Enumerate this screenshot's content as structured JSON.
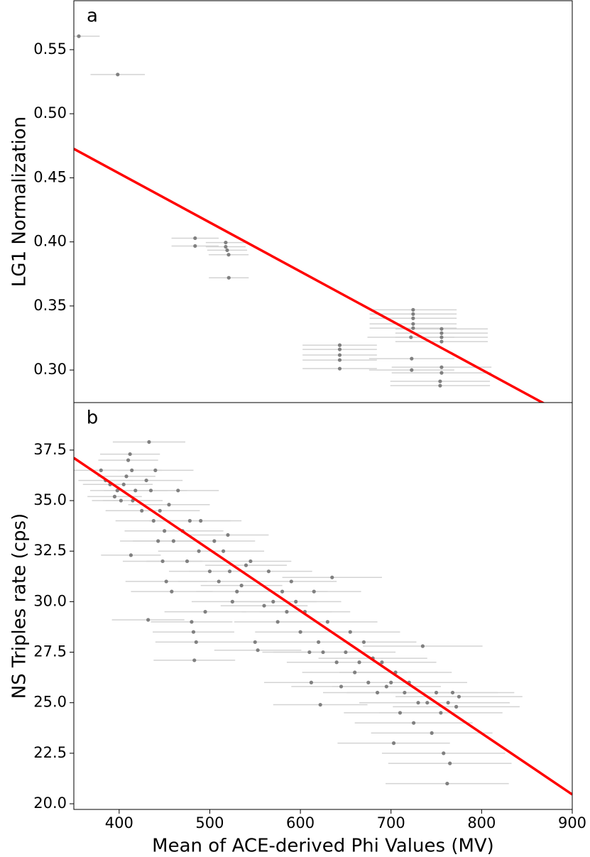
{
  "chart_data": [
    {
      "type": "scatter",
      "label": "a",
      "ylabel": "LG1 Normalization",
      "xlim": [
        350,
        900
      ],
      "ylim": [
        0.2746,
        0.5882
      ],
      "yticks": [
        {
          "value": 0.3,
          "label": "0.30"
        },
        0.35,
        {
          "value": 0.4,
          "label": "0.40"
        },
        0.45,
        {
          "value": 0.5,
          "label": "0.50"
        },
        0.55
      ],
      "series": [
        {
          "color": "#808080",
          "errorbar_color": "#d3d3d3",
          "x": [
            355.5,
            398.4,
            483.8,
            483.8,
            517.6,
            517.6,
            519.2,
            520.8,
            521,
            643.4,
            643.4,
            643.4,
            643.4,
            643.4,
            724.4,
            724.4,
            724.4,
            724.4,
            724.4,
            722,
            722.8,
            722.8,
            755.8,
            755.8,
            755.8,
            755.8,
            755.8,
            755.8,
            754.2,
            754.2
          ],
          "y": [
            0.5605,
            0.5306,
            0.4029,
            0.3968,
            0.3995,
            0.3962,
            0.3935,
            0.39,
            0.372,
            0.3194,
            0.3161,
            0.3117,
            0.3078,
            0.3011,
            0.347,
            0.3437,
            0.3404,
            0.336,
            0.3327,
            0.3256,
            0.3089,
            0.3,
            0.3321,
            0.3288,
            0.3256,
            0.3222,
            0.3022,
            0.2978,
            0.2912,
            0.2878
          ],
          "xerr": [
            23,
            30,
            26,
            26,
            22,
            22,
            22,
            22,
            22,
            41,
            41,
            41,
            41,
            41,
            48,
            48,
            48,
            48,
            48,
            48,
            47,
            47,
            51,
            51,
            51,
            51,
            55,
            55,
            55,
            55
          ]
        }
      ],
      "fit": {
        "color": "#ff0000",
        "x": [
          350,
          900
        ],
        "y": [
          0.4726,
          0.262
        ]
      }
    },
    {
      "type": "scatter",
      "label": "b",
      "ylabel": "NS Triples rate (cps)",
      "xlabel": "Mean of ACE-derived Phi Values (MV)",
      "xlim": [
        350,
        900
      ],
      "ylim": [
        19.72,
        39.85
      ],
      "xticks": [
        400,
        500,
        600,
        700,
        800,
        900
      ],
      "yticks": [
        {
          "value": 20,
          "label": "20.0"
        },
        22.5,
        {
          "value": 25,
          "label": "25.0"
        },
        27.5,
        {
          "value": 30,
          "label": "30.0"
        },
        32.5,
        {
          "value": 35,
          "label": "35.0"
        },
        37.5
      ],
      "series": [
        {
          "color": "#808080",
          "errorbar_color": "#d3d3d3",
          "x": [
            380,
            385,
            390,
            395,
            398,
            402,
            405,
            408,
            410,
            412,
            414,
            415,
            413,
            418,
            425,
            430,
            433,
            435,
            432,
            438,
            440,
            443,
            445,
            448,
            450,
            452,
            455,
            458,
            460,
            465,
            470,
            475,
            478,
            480,
            482,
            483,
            485,
            488,
            490,
            495,
            500,
            505,
            510,
            515,
            520,
            522,
            525,
            530,
            535,
            540,
            545,
            550,
            553,
            560,
            565,
            570,
            575,
            580,
            585,
            590,
            595,
            600,
            605,
            610,
            612,
            615,
            620,
            622,
            625,
            630,
            635,
            640,
            645,
            650,
            655,
            660,
            665,
            670,
            675,
            680,
            685,
            690,
            695,
            700,
            703,
            705,
            710,
            715,
            720,
            725,
            730,
            735,
            740,
            745,
            750,
            755,
            758,
            762,
            763,
            765,
            768,
            772,
            775
          ],
          "y": [
            36.5,
            36.0,
            35.8,
            35.2,
            35.5,
            35.0,
            35.8,
            36.2,
            37.0,
            37.3,
            36.5,
            35.0,
            32.3,
            35.5,
            34.5,
            36.0,
            37.9,
            35.5,
            29.1,
            34.0,
            36.5,
            33.0,
            34.5,
            32.0,
            33.5,
            31.0,
            34.8,
            30.5,
            33.0,
            35.5,
            33.5,
            32.0,
            34.0,
            29.0,
            28.5,
            27.1,
            28.0,
            32.5,
            34.0,
            29.5,
            31.5,
            33.0,
            31.0,
            32.5,
            33.3,
            31.5,
            30.0,
            30.5,
            30.8,
            31.8,
            32.0,
            28.0,
            27.6,
            29.8,
            31.5,
            30.0,
            29.0,
            30.5,
            29.5,
            31.0,
            30.0,
            28.5,
            29.5,
            27.5,
            26.0,
            30.5,
            28.0,
            24.9,
            27.5,
            29.0,
            31.2,
            27.0,
            25.8,
            27.5,
            28.5,
            26.5,
            27.0,
            28.0,
            26.0,
            27.2,
            25.5,
            27.0,
            25.8,
            26.0,
            23.0,
            26.5,
            24.5,
            25.5,
            26.0,
            24.0,
            25.0,
            27.8,
            25.0,
            23.5,
            25.5,
            24.5,
            22.5,
            21.0,
            25.0,
            22.0,
            25.5,
            24.8,
            25.3
          ],
          "xerr": [
            30,
            30,
            30,
            30,
            30,
            32,
            32,
            32,
            33,
            33,
            33,
            33,
            33,
            35,
            40,
            40,
            40,
            40,
            40,
            42,
            42,
            42,
            44,
            44,
            44,
            45,
            45,
            45,
            45,
            45,
            45,
            45,
            45,
            45,
            45,
            45,
            45,
            45,
            45,
            45,
            45,
            45,
            45,
            45,
            45,
            45,
            45,
            45,
            45,
            45,
            45,
            48,
            48,
            48,
            48,
            48,
            48,
            50,
            50,
            50,
            50,
            50,
            50,
            52,
            52,
            52,
            52,
            52,
            55,
            55,
            55,
            55,
            55,
            55,
            55,
            58,
            58,
            58,
            58,
            60,
            60,
            60,
            60,
            62,
            62,
            62,
            62,
            64,
            64,
            65,
            65,
            66,
            66,
            67,
            68,
            68,
            68,
            68,
            68,
            68,
            68,
            70,
            70
          ]
        }
      ],
      "fit": {
        "color": "#ff0000",
        "x": [
          350,
          900
        ],
        "y": [
          37.11,
          20.46
        ]
      }
    }
  ]
}
